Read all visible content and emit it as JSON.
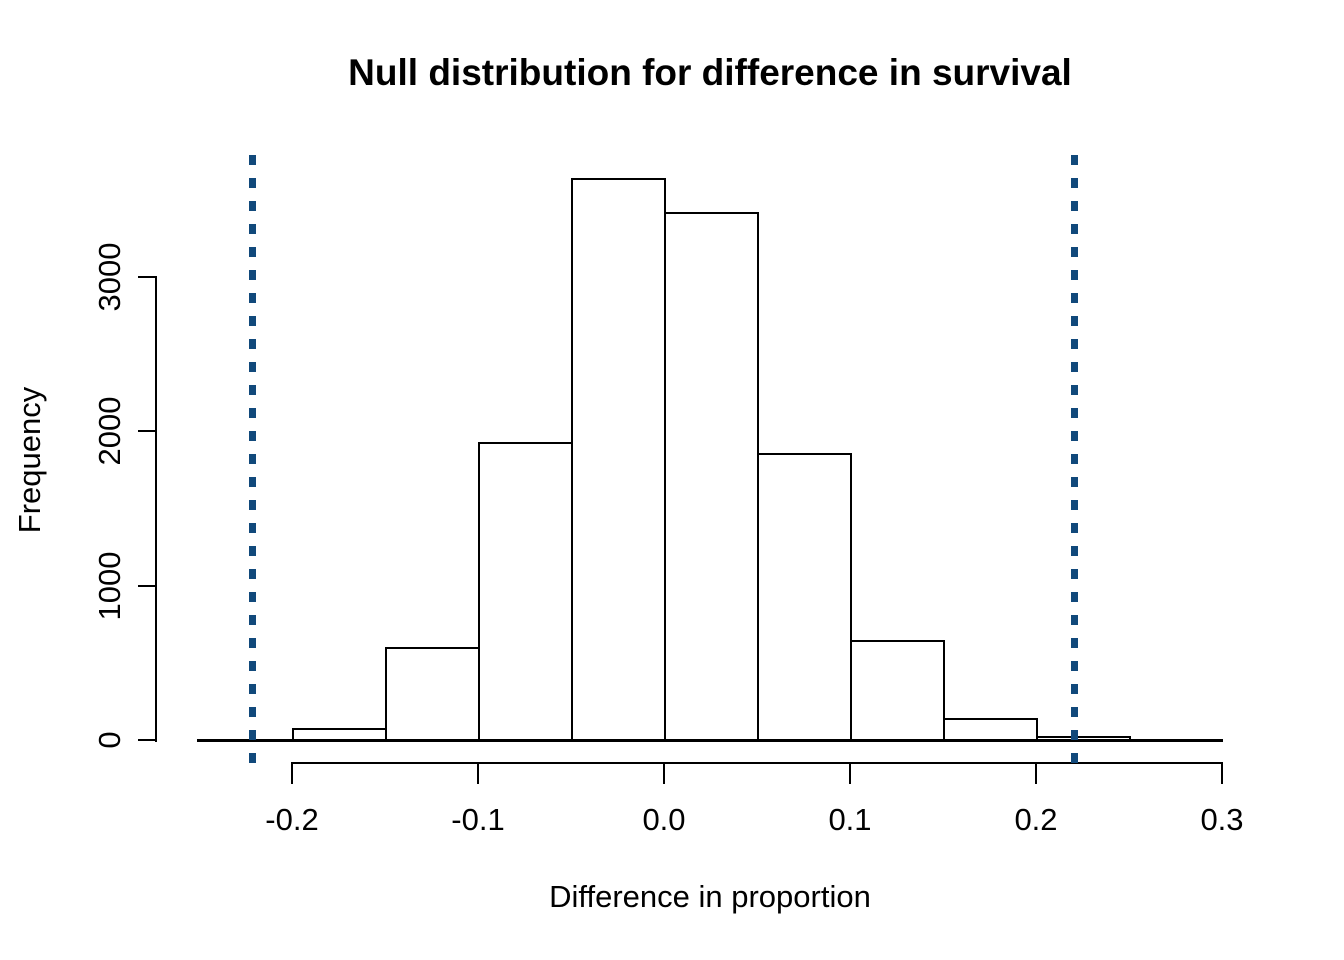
{
  "chart_data": {
    "type": "histogram",
    "title": "Null distribution for difference in survival",
    "xlabel": "Difference in proportion",
    "ylabel": "Frequency",
    "bin_width": 0.05,
    "bin_edges": [
      -0.2,
      -0.15,
      -0.1,
      -0.05,
      0.0,
      0.05,
      0.1,
      0.15,
      0.2,
      0.25
    ],
    "counts": [
      80,
      600,
      1930,
      3640,
      3420,
      1860,
      650,
      140,
      25
    ],
    "x_ticks": [
      -0.2,
      -0.1,
      0.0,
      0.1,
      0.2,
      0.3
    ],
    "x_tick_labels": [
      "-0.2",
      "-0.1",
      "0.0",
      "0.1",
      "0.2",
      "0.3"
    ],
    "y_ticks": [
      0,
      1000,
      2000,
      3000
    ],
    "y_tick_labels": [
      "0",
      "1000",
      "2000",
      "3000"
    ],
    "xlim": [
      -0.25,
      0.3
    ],
    "ylim": [
      0,
      3000
    ],
    "grid": false,
    "legend": null,
    "baseline_y": 0,
    "vlines": {
      "values": [
        -0.221,
        0.221
      ],
      "style": "dotted",
      "color": "#11497B"
    },
    "colors": {
      "bar_fill": "#FFFFFF",
      "bar_border": "#000000",
      "axis": "#000000",
      "background": "#FFFFFF",
      "vline": "#11497B"
    }
  }
}
